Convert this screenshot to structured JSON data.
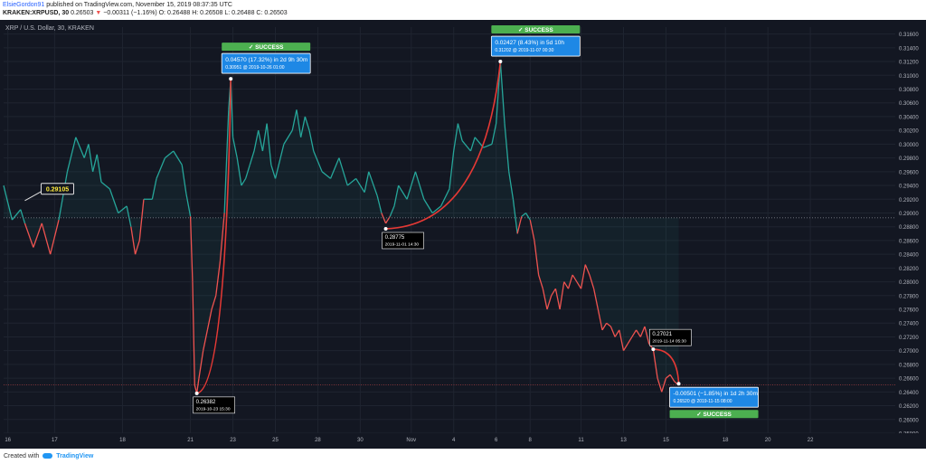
{
  "header": {
    "author": "ElsieGordon91",
    "published": "published on TradingView.com, November 15, 2019 08:37:35 UTC",
    "symbol": "KRAKEN:XRPUSD, 30",
    "last": "0.26503",
    "change": "−0.00311 (−1.16%)",
    "ohlc": "O: 0.26488 H: 0.26508 L: 0.26488 C: 0.26503"
  },
  "footer": {
    "created_with": "Created with",
    "brand": "TradingView"
  },
  "colors": {
    "up": "#26a69a",
    "down": "#ef5350",
    "background": "#131722",
    "grid": "#1f2430",
    "label_blue": "#1e88e5",
    "success_green": "#4caf50"
  },
  "chart_data": {
    "type": "line",
    "title": "XRP / U.S. Dollar, 30, KRAKEN",
    "x_ticks": [
      "16",
      "17",
      "18",
      "21",
      "23",
      "25",
      "28",
      "30",
      "Nov",
      "4",
      "6",
      "8",
      "11",
      "13",
      "15",
      "18",
      "20",
      "22"
    ],
    "y_ticks": [
      "0.25800",
      "0.26000",
      "0.26200",
      "0.26400",
      "0.26600",
      "0.26800",
      "0.27000",
      "0.27200",
      "0.27400",
      "0.27600",
      "0.27800",
      "0.28000",
      "0.28200",
      "0.28400",
      "0.28600",
      "0.28800",
      "0.29000",
      "0.29200",
      "0.29400",
      "0.29600",
      "0.29800",
      "0.30000",
      "0.30200",
      "0.30400",
      "0.30600",
      "0.30800",
      "0.31000",
      "0.31200",
      "0.31400",
      "0.31600"
    ],
    "ylim": [
      0.258,
      0.317
    ],
    "price_series": [
      [
        0,
        0.294
      ],
      [
        2,
        0.289
      ],
      [
        4,
        0.2905
      ],
      [
        5,
        0.2885
      ],
      [
        7,
        0.285
      ],
      [
        9,
        0.2885
      ],
      [
        11,
        0.284
      ],
      [
        13,
        0.289
      ],
      [
        15,
        0.296
      ],
      [
        17,
        0.301
      ],
      [
        19,
        0.298
      ],
      [
        20,
        0.3
      ],
      [
        21,
        0.296
      ],
      [
        22,
        0.2985
      ],
      [
        23,
        0.2945
      ],
      [
        25,
        0.2935
      ],
      [
        27,
        0.29
      ],
      [
        29,
        0.291
      ],
      [
        30,
        0.288
      ],
      [
        31,
        0.284
      ],
      [
        32,
        0.286
      ],
      [
        33,
        0.292
      ],
      [
        35,
        0.292
      ],
      [
        36,
        0.295
      ],
      [
        38,
        0.298
      ],
      [
        40,
        0.299
      ],
      [
        42,
        0.297
      ],
      [
        43,
        0.2928
      ],
      [
        44,
        0.2895
      ],
      [
        44.5,
        0.28
      ],
      [
        45,
        0.265
      ],
      [
        45.5,
        0.2638
      ],
      [
        46,
        0.266
      ],
      [
        47,
        0.27
      ],
      [
        48,
        0.273
      ],
      [
        49,
        0.276
      ],
      [
        50,
        0.278
      ],
      [
        51,
        0.283
      ],
      [
        52,
        0.29
      ],
      [
        53,
        0.305
      ],
      [
        53.5,
        0.3095
      ],
      [
        54,
        0.301
      ],
      [
        55,
        0.298
      ],
      [
        56,
        0.294
      ],
      [
        57,
        0.295
      ],
      [
        58,
        0.297
      ],
      [
        59,
        0.299
      ],
      [
        60,
        0.302
      ],
      [
        61,
        0.299
      ],
      [
        62,
        0.303
      ],
      [
        63,
        0.297
      ],
      [
        64,
        0.295
      ],
      [
        66,
        0.3
      ],
      [
        68,
        0.302
      ],
      [
        69,
        0.305
      ],
      [
        70,
        0.301
      ],
      [
        71,
        0.304
      ],
      [
        72,
        0.302
      ],
      [
        73,
        0.299
      ],
      [
        75,
        0.296
      ],
      [
        77,
        0.295
      ],
      [
        79,
        0.298
      ],
      [
        81,
        0.294
      ],
      [
        83,
        0.295
      ],
      [
        85,
        0.293
      ],
      [
        86,
        0.296
      ],
      [
        88,
        0.2925
      ],
      [
        89,
        0.29
      ],
      [
        90,
        0.2885
      ],
      [
        91,
        0.2895
      ],
      [
        92,
        0.291
      ],
      [
        93,
        0.294
      ],
      [
        95,
        0.292
      ],
      [
        97,
        0.296
      ],
      [
        99,
        0.292
      ],
      [
        101,
        0.29
      ],
      [
        103,
        0.291
      ],
      [
        105,
        0.2935
      ],
      [
        106,
        0.299
      ],
      [
        107,
        0.303
      ],
      [
        108,
        0.3005
      ],
      [
        110,
        0.299
      ],
      [
        111,
        0.301
      ],
      [
        113,
        0.2995
      ],
      [
        115,
        0.3
      ],
      [
        116,
        0.303
      ],
      [
        117,
        0.312
      ],
      [
        118,
        0.303
      ],
      [
        119,
        0.296
      ],
      [
        120,
        0.292
      ],
      [
        121,
        0.287
      ],
      [
        122,
        0.2895
      ],
      [
        123,
        0.29
      ],
      [
        124,
        0.289
      ],
      [
        125,
        0.286
      ],
      [
        126,
        0.281
      ],
      [
        127,
        0.279
      ],
      [
        128,
        0.276
      ],
      [
        129,
        0.278
      ],
      [
        130,
        0.279
      ],
      [
        131,
        0.276
      ],
      [
        132,
        0.28
      ],
      [
        133,
        0.279
      ],
      [
        134,
        0.281
      ],
      [
        135,
        0.28
      ],
      [
        136,
        0.279
      ],
      [
        137,
        0.2825
      ],
      [
        138,
        0.281
      ],
      [
        139,
        0.279
      ],
      [
        140,
        0.276
      ],
      [
        141,
        0.273
      ],
      [
        142,
        0.274
      ],
      [
        143,
        0.2735
      ],
      [
        144,
        0.272
      ],
      [
        145,
        0.273
      ],
      [
        146,
        0.27
      ],
      [
        147,
        0.271
      ],
      [
        148,
        0.272
      ],
      [
        149,
        0.273
      ],
      [
        150,
        0.272
      ],
      [
        151,
        0.2735
      ],
      [
        152,
        0.271
      ],
      [
        153,
        0.2702
      ],
      [
        154,
        0.266
      ],
      [
        155,
        0.264
      ],
      [
        156,
        0.266
      ],
      [
        157,
        0.2665
      ],
      [
        158,
        0.2655
      ],
      [
        159,
        0.265
      ]
    ],
    "price_lines": {
      "reference": 0.2893,
      "current": 0.26503
    },
    "price_labels": {
      "current": "0.26503",
      "reference_marker": "0.29105"
    },
    "projections": [
      {
        "from_label": "0.26382",
        "from_date": "2019-10-23 15:30",
        "to_price": "0.30951",
        "to_date": "2019-10-26 01:00",
        "change": "0.04570 (17.32%) in 2d 9h 30m",
        "target": "0.30951 @ 2019-10-26 01:00",
        "status": "SUCCESS",
        "from": [
          45.5,
          0.2638
        ],
        "to": [
          53.5,
          0.3095
        ]
      },
      {
        "from_label": "0.28775",
        "from_date": "2019-11-01 14:30",
        "to_price": "0.31202",
        "to_date": "2019-11-07 00:30",
        "change": "0.02427 (8.43%) in 5d 10h",
        "target": "0.31202 @ 2019-11-07 00:30",
        "status": "SUCCESS",
        "from": [
          90,
          0.2877
        ],
        "to": [
          117,
          0.312
        ]
      },
      {
        "from_label": "0.27021",
        "from_date": "2019-11-14 05:30",
        "to_price": "0.26520",
        "to_date": "2019-11-15 08:00",
        "change": "-0.00501 (−1.85%) in 1d 2h 30m",
        "target": "0.26520 @ 2019-11-15 08:00",
        "status": "SUCCESS",
        "from": [
          153,
          0.2702
        ],
        "to": [
          159,
          0.2652
        ]
      }
    ]
  }
}
